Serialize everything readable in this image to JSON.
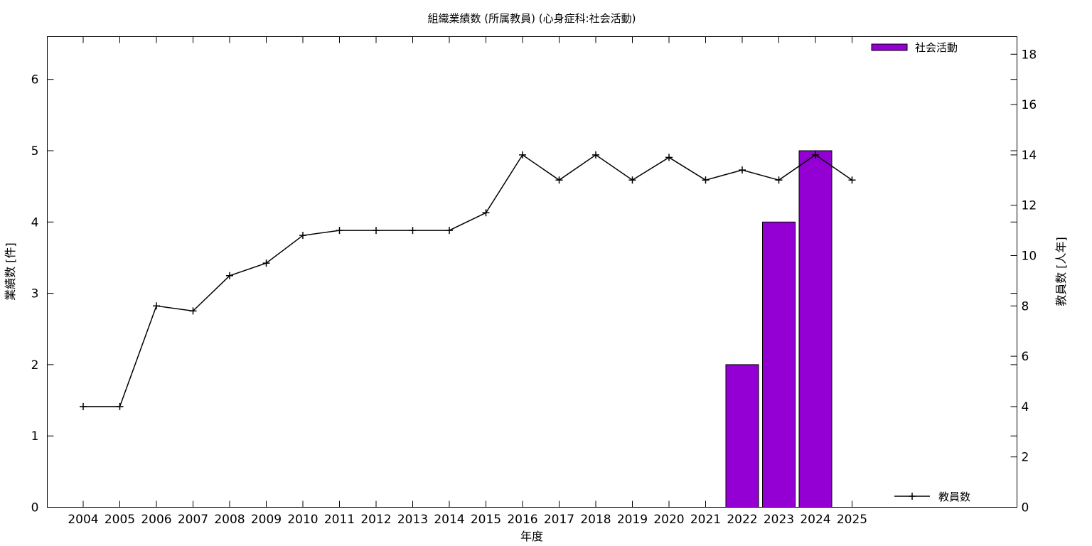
{
  "chart_data": {
    "type": "bar",
    "title": "組織業績数 (所属教員) (心身症科:社会活動)",
    "xlabel": "年度",
    "ylabel_left": "業績数 [件]",
    "ylabel_right": "教員数 [人年]",
    "categories": [
      "2004",
      "2005",
      "2006",
      "2007",
      "2008",
      "2009",
      "2010",
      "2011",
      "2012",
      "2013",
      "2014",
      "2015",
      "2016",
      "2017",
      "2018",
      "2019",
      "2020",
      "2021",
      "2022",
      "2023",
      "2024",
      "2025"
    ],
    "y_left_range": [
      0,
      6.6
    ],
    "y_left_ticks": [
      "0",
      "1",
      "2",
      "3",
      "4",
      "5",
      "6"
    ],
    "y_right_range": [
      0,
      18.7
    ],
    "y_right_ticks": [
      "0",
      "2",
      "4",
      "6",
      "8",
      "10",
      "12",
      "14",
      "16",
      "18"
    ],
    "grid": false,
    "series": [
      {
        "name": "社会活動",
        "kind": "bar",
        "axis": "left",
        "color": "#9400d3",
        "values": [
          0,
          0,
          0,
          0,
          0,
          0,
          0,
          0,
          0,
          0,
          0,
          0,
          0,
          0,
          0,
          0,
          0,
          0,
          2,
          4,
          5,
          0
        ],
        "legend_position": "top-right"
      },
      {
        "name": "教員数",
        "kind": "line",
        "axis": "right",
        "color": "#000000",
        "marker": "plus",
        "values": [
          4,
          4,
          8,
          7.8,
          9.2,
          9.7,
          10.8,
          11,
          11,
          11,
          11,
          11.7,
          14,
          13,
          14,
          13,
          13.9,
          13,
          13.4,
          13,
          14,
          13
        ],
        "legend_position": "bottom-right"
      }
    ]
  }
}
